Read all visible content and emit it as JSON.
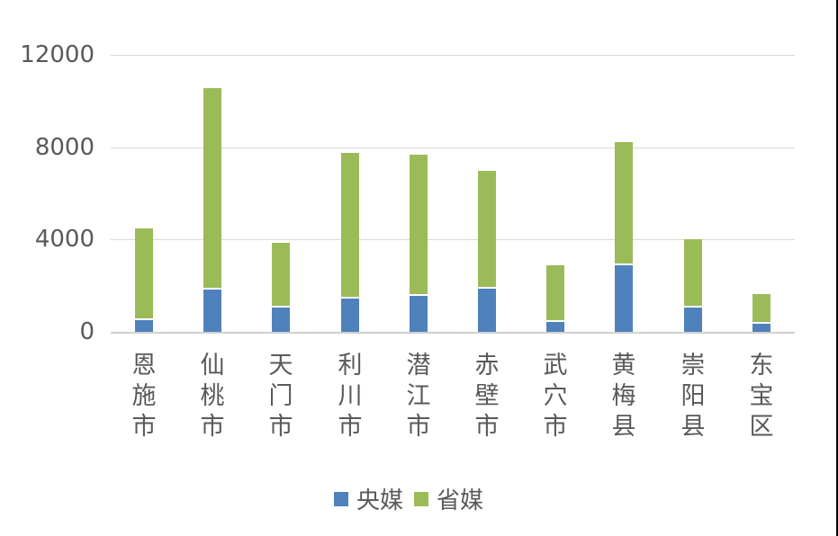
{
  "chart_data": {
    "type": "bar",
    "stacked": true,
    "title": "",
    "xlabel": "",
    "ylabel": "",
    "ylim": [
      0,
      12000
    ],
    "yticks": [
      0,
      4000,
      8000,
      12000
    ],
    "ytick_labels": [
      "0",
      "4000",
      "8000",
      "12000"
    ],
    "grid": true,
    "legend_position": "bottom",
    "categories": [
      "恩施市",
      "仙桃市",
      "天门市",
      "利川市",
      "潜江市",
      "赤壁市",
      "武穴市",
      "黄梅县",
      "崇阳县",
      "东宝区"
    ],
    "series": [
      {
        "name": "央媒",
        "color": "#4f81bd",
        "values": [
          518,
          1819,
          1065,
          1455,
          1560,
          1885,
          440,
          2890,
          1065,
          365
        ]
      },
      {
        "name": "省媒",
        "color": "#9bbb59",
        "values": [
          3961,
          8736,
          2780,
          6295,
          6110,
          5085,
          2435,
          5320,
          2945,
          1265
        ]
      }
    ]
  },
  "legend": {
    "items": [
      {
        "label": "央媒",
        "color": "#4f81bd"
      },
      {
        "label": "省媒",
        "color": "#9bbb59"
      }
    ]
  }
}
